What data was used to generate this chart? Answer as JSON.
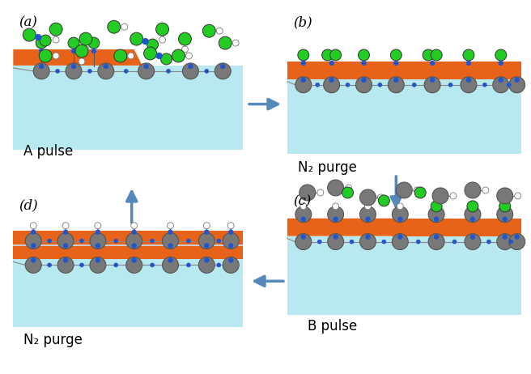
{
  "bg_color": "#ffffff",
  "light_blue": "#b8e8f0",
  "orange": "#e8631a",
  "green": "#22cc22",
  "gray": "#787878",
  "dark_gray": "#555555",
  "blue_dot": "#2255cc",
  "arrow_color": "#5588bb",
  "white": "#ffffff",
  "panel_labels": [
    "(a)",
    "(b)",
    "(c)",
    "(d)"
  ],
  "panel_texts": [
    "A pulse",
    "N₂ purge",
    "B pulse",
    "N₂ purge"
  ]
}
